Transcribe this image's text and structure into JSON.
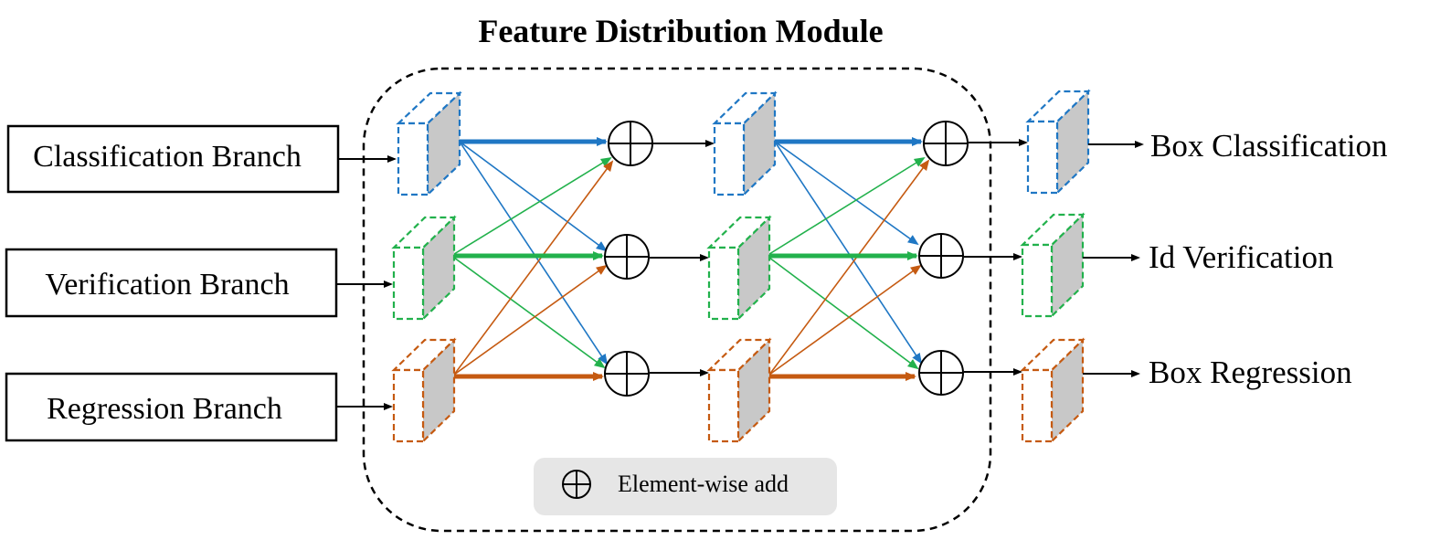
{
  "title": "Feature Distribution Module",
  "inputs": [
    {
      "label": "Classification Branch"
    },
    {
      "label": "Verification Branch"
    },
    {
      "label": "Regression Branch"
    }
  ],
  "outputs": [
    {
      "label": "Box Classification"
    },
    {
      "label": "Id Verification"
    },
    {
      "label": "Box Regression"
    }
  ],
  "legend": {
    "label": "Element-wise add",
    "icon": "circle-plus-icon"
  },
  "colors": {
    "classification": "#1f77c4",
    "verification": "#22b14c",
    "regression": "#c55a11",
    "cube_side": "#c8c8c8",
    "legend_bg": "#e6e6e6"
  }
}
